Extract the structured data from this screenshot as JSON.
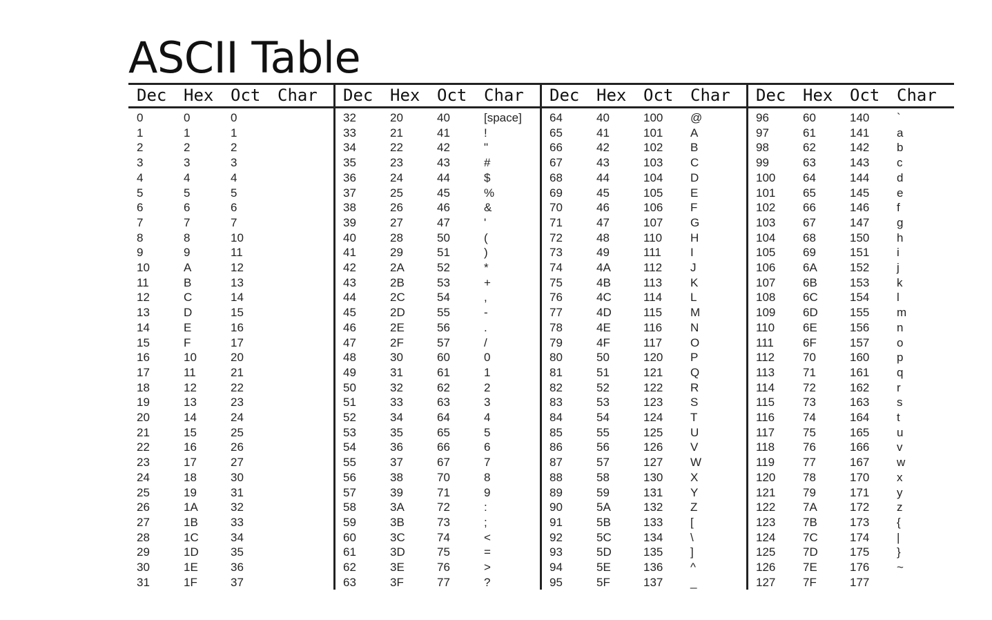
{
  "title": "ASCII Table",
  "table": {
    "headers": [
      "Dec",
      "Hex",
      "Oct",
      "Char"
    ],
    "blocks": [
      {
        "rows": [
          [
            "0",
            "0",
            "0",
            ""
          ],
          [
            "1",
            "1",
            "1",
            ""
          ],
          [
            "2",
            "2",
            "2",
            ""
          ],
          [
            "3",
            "3",
            "3",
            ""
          ],
          [
            "4",
            "4",
            "4",
            ""
          ],
          [
            "5",
            "5",
            "5",
            ""
          ],
          [
            "6",
            "6",
            "6",
            ""
          ],
          [
            "7",
            "7",
            "7",
            ""
          ],
          [
            "8",
            "8",
            "10",
            ""
          ],
          [
            "9",
            "9",
            "11",
            ""
          ],
          [
            "10",
            "A",
            "12",
            ""
          ],
          [
            "11",
            "B",
            "13",
            ""
          ],
          [
            "12",
            "C",
            "14",
            ""
          ],
          [
            "13",
            "D",
            "15",
            ""
          ],
          [
            "14",
            "E",
            "16",
            ""
          ],
          [
            "15",
            "F",
            "17",
            ""
          ],
          [
            "16",
            "10",
            "20",
            ""
          ],
          [
            "17",
            "11",
            "21",
            ""
          ],
          [
            "18",
            "12",
            "22",
            ""
          ],
          [
            "19",
            "13",
            "23",
            ""
          ],
          [
            "20",
            "14",
            "24",
            ""
          ],
          [
            "21",
            "15",
            "25",
            ""
          ],
          [
            "22",
            "16",
            "26",
            ""
          ],
          [
            "23",
            "17",
            "27",
            ""
          ],
          [
            "24",
            "18",
            "30",
            ""
          ],
          [
            "25",
            "19",
            "31",
            ""
          ],
          [
            "26",
            "1A",
            "32",
            ""
          ],
          [
            "27",
            "1B",
            "33",
            ""
          ],
          [
            "28",
            "1C",
            "34",
            ""
          ],
          [
            "29",
            "1D",
            "35",
            ""
          ],
          [
            "30",
            "1E",
            "36",
            ""
          ],
          [
            "31",
            "1F",
            "37",
            ""
          ]
        ]
      },
      {
        "rows": [
          [
            "32",
            "20",
            "40",
            "[space]"
          ],
          [
            "33",
            "21",
            "41",
            "!"
          ],
          [
            "34",
            "22",
            "42",
            "\""
          ],
          [
            "35",
            "23",
            "43",
            "#"
          ],
          [
            "36",
            "24",
            "44",
            "$"
          ],
          [
            "37",
            "25",
            "45",
            "%"
          ],
          [
            "38",
            "26",
            "46",
            "&"
          ],
          [
            "39",
            "27",
            "47",
            "'"
          ],
          [
            "40",
            "28",
            "50",
            "("
          ],
          [
            "41",
            "29",
            "51",
            ")"
          ],
          [
            "42",
            "2A",
            "52",
            "*"
          ],
          [
            "43",
            "2B",
            "53",
            "+"
          ],
          [
            "44",
            "2C",
            "54",
            ","
          ],
          [
            "45",
            "2D",
            "55",
            "-"
          ],
          [
            "46",
            "2E",
            "56",
            "."
          ],
          [
            "47",
            "2F",
            "57",
            "/"
          ],
          [
            "48",
            "30",
            "60",
            "0"
          ],
          [
            "49",
            "31",
            "61",
            "1"
          ],
          [
            "50",
            "32",
            "62",
            "2"
          ],
          [
            "51",
            "33",
            "63",
            "3"
          ],
          [
            "52",
            "34",
            "64",
            "4"
          ],
          [
            "53",
            "35",
            "65",
            "5"
          ],
          [
            "54",
            "36",
            "66",
            "6"
          ],
          [
            "55",
            "37",
            "67",
            "7"
          ],
          [
            "56",
            "38",
            "70",
            "8"
          ],
          [
            "57",
            "39",
            "71",
            "9"
          ],
          [
            "58",
            "3A",
            "72",
            ":"
          ],
          [
            "59",
            "3B",
            "73",
            ";"
          ],
          [
            "60",
            "3C",
            "74",
            "<"
          ],
          [
            "61",
            "3D",
            "75",
            "="
          ],
          [
            "62",
            "3E",
            "76",
            ">"
          ],
          [
            "63",
            "3F",
            "77",
            "?"
          ]
        ]
      },
      {
        "rows": [
          [
            "64",
            "40",
            "100",
            "@"
          ],
          [
            "65",
            "41",
            "101",
            "A"
          ],
          [
            "66",
            "42",
            "102",
            "B"
          ],
          [
            "67",
            "43",
            "103",
            "C"
          ],
          [
            "68",
            "44",
            "104",
            "D"
          ],
          [
            "69",
            "45",
            "105",
            "E"
          ],
          [
            "70",
            "46",
            "106",
            "F"
          ],
          [
            "71",
            "47",
            "107",
            "G"
          ],
          [
            "72",
            "48",
            "110",
            "H"
          ],
          [
            "73",
            "49",
            "111",
            "I"
          ],
          [
            "74",
            "4A",
            "112",
            "J"
          ],
          [
            "75",
            "4B",
            "113",
            "K"
          ],
          [
            "76",
            "4C",
            "114",
            "L"
          ],
          [
            "77",
            "4D",
            "115",
            "M"
          ],
          [
            "78",
            "4E",
            "116",
            "N"
          ],
          [
            "79",
            "4F",
            "117",
            "O"
          ],
          [
            "80",
            "50",
            "120",
            "P"
          ],
          [
            "81",
            "51",
            "121",
            "Q"
          ],
          [
            "82",
            "52",
            "122",
            "R"
          ],
          [
            "83",
            "53",
            "123",
            "S"
          ],
          [
            "84",
            "54",
            "124",
            "T"
          ],
          [
            "85",
            "55",
            "125",
            "U"
          ],
          [
            "86",
            "56",
            "126",
            "V"
          ],
          [
            "87",
            "57",
            "127",
            "W"
          ],
          [
            "88",
            "58",
            "130",
            "X"
          ],
          [
            "89",
            "59",
            "131",
            "Y"
          ],
          [
            "90",
            "5A",
            "132",
            "Z"
          ],
          [
            "91",
            "5B",
            "133",
            "["
          ],
          [
            "92",
            "5C",
            "134",
            "\\"
          ],
          [
            "93",
            "5D",
            "135",
            "]"
          ],
          [
            "94",
            "5E",
            "136",
            "^"
          ],
          [
            "95",
            "5F",
            "137",
            "_"
          ]
        ]
      },
      {
        "rows": [
          [
            "96",
            "60",
            "140",
            "`"
          ],
          [
            "97",
            "61",
            "141",
            "a"
          ],
          [
            "98",
            "62",
            "142",
            "b"
          ],
          [
            "99",
            "63",
            "143",
            "c"
          ],
          [
            "100",
            "64",
            "144",
            "d"
          ],
          [
            "101",
            "65",
            "145",
            "e"
          ],
          [
            "102",
            "66",
            "146",
            "f"
          ],
          [
            "103",
            "67",
            "147",
            "g"
          ],
          [
            "104",
            "68",
            "150",
            "h"
          ],
          [
            "105",
            "69",
            "151",
            "i"
          ],
          [
            "106",
            "6A",
            "152",
            "j"
          ],
          [
            "107",
            "6B",
            "153",
            "k"
          ],
          [
            "108",
            "6C",
            "154",
            "l"
          ],
          [
            "109",
            "6D",
            "155",
            "m"
          ],
          [
            "110",
            "6E",
            "156",
            "n"
          ],
          [
            "111",
            "6F",
            "157",
            "o"
          ],
          [
            "112",
            "70",
            "160",
            "p"
          ],
          [
            "113",
            "71",
            "161",
            "q"
          ],
          [
            "114",
            "72",
            "162",
            "r"
          ],
          [
            "115",
            "73",
            "163",
            "s"
          ],
          [
            "116",
            "74",
            "164",
            "t"
          ],
          [
            "117",
            "75",
            "165",
            "u"
          ],
          [
            "118",
            "76",
            "166",
            "v"
          ],
          [
            "119",
            "77",
            "167",
            "w"
          ],
          [
            "120",
            "78",
            "170",
            "x"
          ],
          [
            "121",
            "79",
            "171",
            "y"
          ],
          [
            "122",
            "7A",
            "172",
            "z"
          ],
          [
            "123",
            "7B",
            "173",
            "{"
          ],
          [
            "124",
            "7C",
            "174",
            "|"
          ],
          [
            "125",
            "7D",
            "175",
            "}"
          ],
          [
            "126",
            "7E",
            "176",
            "~"
          ],
          [
            "127",
            "7F",
            "177",
            ""
          ]
        ]
      }
    ]
  }
}
